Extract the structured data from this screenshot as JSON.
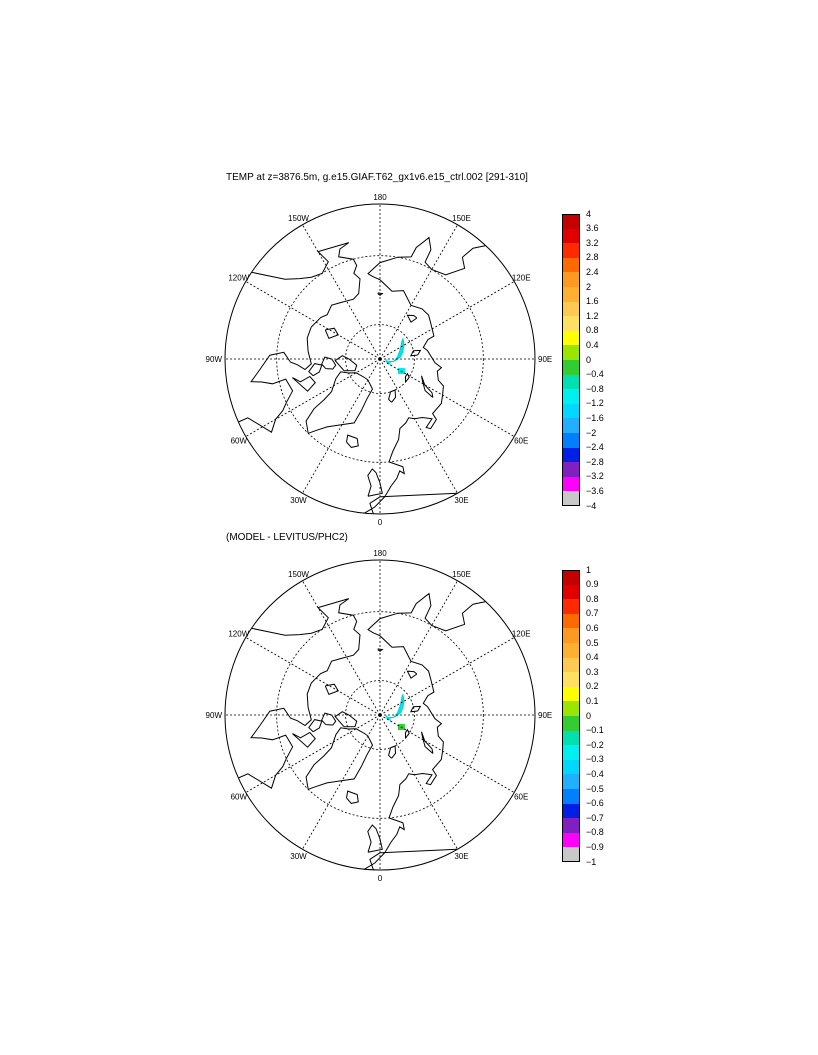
{
  "panels": [
    {
      "title": "TEMP at z=3876.5m, g.e15.GIAF.T62_gx1v6.e15_ctrl.002 [291-310]",
      "colorbar": {
        "labels": [
          "4",
          "3.6",
          "3.2",
          "2.8",
          "2.4",
          "2",
          "1.6",
          "1.2",
          "0.8",
          "0.4",
          "0",
          "−0.4",
          "−0.8",
          "−1.2",
          "−1.6",
          "−2",
          "−2.4",
          "−2.8",
          "−3.2",
          "−3.6",
          "−4"
        ]
      },
      "anomaly": {
        "lat": 78,
        "lon": 75,
        "value": "cyan"
      }
    },
    {
      "title": "(MODEL - LEVITUS/PHC2)",
      "colorbar": {
        "labels": [
          "1",
          "0.9",
          "0.8",
          "0.7",
          "0.6",
          "0.5",
          "0.4",
          "0.3",
          "0.2",
          "0.1",
          "0",
          "−0.1",
          "−0.2",
          "−0.3",
          "−0.4",
          "−0.5",
          "−0.6",
          "−0.7",
          "−0.8",
          "−0.9",
          "−1"
        ]
      },
      "anomaly": {
        "lat": 78,
        "lon": 75,
        "value": "cyan"
      }
    }
  ],
  "map_labels": [
    "180",
    "150E",
    "120E",
    "90E",
    "60E",
    "30E",
    "0",
    "30W",
    "60W",
    "90W",
    "120W",
    "150W"
  ],
  "colors": [
    "#c40000",
    "#e00000",
    "#ff2a00",
    "#ff6a00",
    "#ff9a20",
    "#ffb030",
    "#ffc850",
    "#ffe060",
    "#ffff00",
    "#9ae600",
    "#33cc33",
    "#00e0b0",
    "#00f0f0",
    "#00d8ff",
    "#20b0ff",
    "#0080ff",
    "#0020e6",
    "#8020c0",
    "#ff00ff",
    "#c8c8c8",
    "#707070"
  ]
}
